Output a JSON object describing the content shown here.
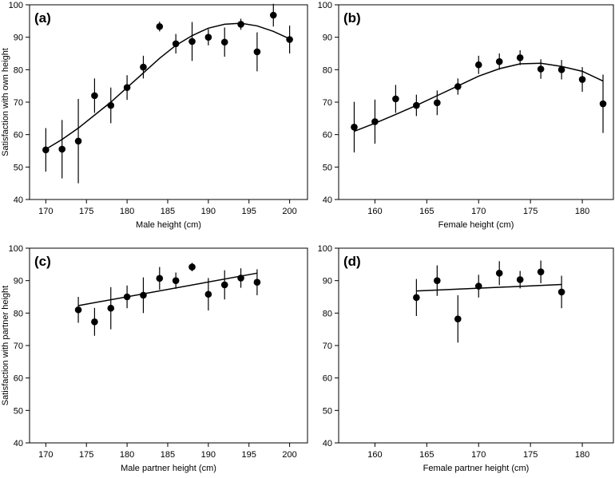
{
  "chart_data": [
    {
      "type": "scatter",
      "panel_label": "(a)",
      "xlabel": "Male height (cm)",
      "ylabel": "Satisfaction with own height",
      "xlim": [
        168,
        202.2
      ],
      "ylim": [
        40,
        100
      ],
      "xticks": [
        170,
        175,
        180,
        185,
        190,
        195,
        200
      ],
      "yticks": [
        40,
        50,
        60,
        70,
        80,
        90,
        100
      ],
      "color": "#000000",
      "grid": false,
      "x": [
        170,
        172,
        174,
        176,
        178,
        180,
        182,
        184,
        186,
        188,
        190,
        192,
        194,
        196,
        198,
        200
      ],
      "values": [
        55.3,
        55.5,
        58,
        72,
        69,
        74.5,
        80.8,
        93.3,
        88,
        88.7,
        90,
        88.5,
        94,
        85.5,
        96.8,
        89.3
      ],
      "errors": [
        6.7,
        9,
        13,
        5.3,
        5.5,
        3.8,
        3.5,
        1.5,
        3,
        6,
        2.5,
        4.5,
        1.7,
        6,
        3.5,
        4.3
      ],
      "fit_x": [
        170,
        172,
        174,
        176,
        178,
        180,
        182,
        184,
        186,
        188,
        190,
        192,
        194,
        196,
        198,
        200
      ],
      "fit_values": [
        55.5,
        58.5,
        62,
        66,
        70,
        74.5,
        79,
        83.5,
        87.5,
        90.5,
        92.8,
        94,
        94.3,
        93.5,
        91.8,
        89.5
      ]
    },
    {
      "type": "scatter",
      "panel_label": "(b)",
      "xlabel": "Female height (cm)",
      "xlim": [
        156.5,
        183
      ],
      "ylim": [
        40,
        100
      ],
      "xticks": [
        160,
        165,
        170,
        175,
        180
      ],
      "yticks": [
        40,
        50,
        60,
        70,
        80,
        90,
        100
      ],
      "color": "#000000",
      "grid": false,
      "x": [
        158,
        160,
        162,
        164,
        166,
        168,
        170,
        172,
        174,
        176,
        178,
        180,
        182
      ],
      "values": [
        62.3,
        64,
        71,
        69,
        69.8,
        74.8,
        81.5,
        82.5,
        83.7,
        80.2,
        80,
        77,
        69.5
      ],
      "errors": [
        7.8,
        6.8,
        4.3,
        3.3,
        3.8,
        2.5,
        2.8,
        2.5,
        2.3,
        3,
        3,
        3.8,
        9
      ],
      "fit_x": [
        158,
        160,
        162,
        164,
        166,
        168,
        170,
        172,
        174,
        176,
        178,
        180,
        182
      ],
      "fit_values": [
        61,
        63.5,
        66.2,
        69,
        72,
        75,
        78,
        80.3,
        81.8,
        82,
        81,
        79.5,
        76.5
      ]
    },
    {
      "type": "scatter",
      "panel_label": "(c)",
      "xlabel": "Male partner height (cm)",
      "ylabel": "Satisfaction with partner height",
      "xlim": [
        168,
        202.2
      ],
      "ylim": [
        40,
        100
      ],
      "xticks": [
        170,
        175,
        180,
        185,
        190,
        195,
        200
      ],
      "yticks": [
        40,
        50,
        60,
        70,
        80,
        90,
        100
      ],
      "color": "#000000",
      "grid": false,
      "x": [
        174,
        176,
        178,
        180,
        182,
        184,
        186,
        188,
        190,
        192,
        194,
        196
      ],
      "values": [
        81,
        77.3,
        81.5,
        85,
        85.5,
        90.7,
        90,
        94.2,
        85.8,
        88.7,
        90.8,
        89.5
      ],
      "errors": [
        4,
        4.3,
        6.5,
        3.5,
        5.5,
        3.5,
        2.5,
        1.3,
        5,
        4.5,
        3,
        4
      ],
      "fit_x": [
        174,
        196
      ],
      "fit_values": [
        82.3,
        92.3
      ]
    },
    {
      "type": "scatter",
      "panel_label": "(d)",
      "xlabel": "Female partner height (cm)",
      "xlim": [
        156.5,
        183
      ],
      "ylim": [
        40,
        100
      ],
      "xticks": [
        160,
        165,
        170,
        175,
        180
      ],
      "yticks": [
        40,
        50,
        60,
        70,
        80,
        90,
        100
      ],
      "color": "#000000",
      "grid": false,
      "x": [
        164,
        166,
        168,
        170,
        172,
        174,
        176,
        178
      ],
      "values": [
        84.8,
        90,
        78.2,
        88.3,
        92.3,
        90.3,
        92.7,
        86.5
      ],
      "errors": [
        5.7,
        4.7,
        7.3,
        3.5,
        3.7,
        2.7,
        3.5,
        5
      ],
      "fit_x": [
        164,
        178
      ],
      "fit_values": [
        86.8,
        88.8
      ]
    }
  ]
}
